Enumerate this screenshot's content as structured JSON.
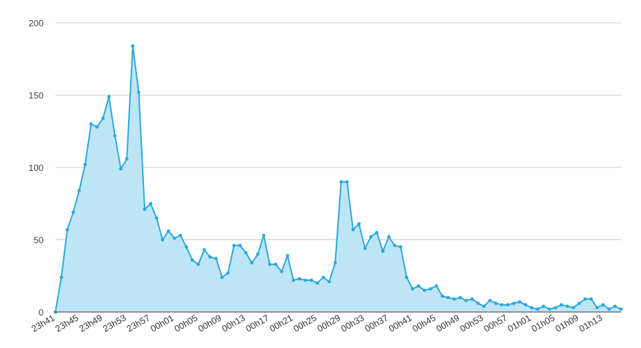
{
  "colors": {
    "line": "#29a8dc",
    "fill": "#bde5f5",
    "grid": "#cccccc",
    "axis": "#333333"
  },
  "chart_data": {
    "type": "area",
    "title": "",
    "xlabel": "",
    "ylabel": "",
    "ylim": [
      0,
      200
    ],
    "y_ticks": [
      0,
      50,
      100,
      150,
      200
    ],
    "grid": true,
    "legend": "none",
    "x_tick_labels": [
      "23h41",
      "23h45",
      "23h49",
      "23h53",
      "23h57",
      "00h01",
      "00h05",
      "00h09",
      "00h13",
      "00h17",
      "00h21",
      "00h25",
      "00h29",
      "00h33",
      "00h37",
      "00h41",
      "00h45",
      "00h49",
      "00h53",
      "00h57",
      "01h01",
      "01h05",
      "01h09",
      "01h13"
    ],
    "x_tick_every": 4,
    "series": [
      {
        "values": [
          0,
          24,
          57,
          69,
          84,
          102,
          130,
          128,
          134,
          149,
          122,
          99,
          106,
          184,
          152,
          71,
          75,
          65,
          50,
          56,
          51,
          53,
          45,
          36,
          33,
          43,
          38,
          37,
          24,
          27,
          46,
          46,
          41,
          34,
          40,
          53,
          33,
          33,
          28,
          39,
          22,
          23,
          22,
          22,
          20,
          24,
          21,
          34,
          90,
          90,
          57,
          61,
          44,
          52,
          55,
          42,
          52,
          46,
          45,
          24,
          16,
          18,
          15,
          16,
          18,
          11,
          10,
          9,
          10,
          8,
          9,
          6,
          4,
          8,
          6,
          5,
          5,
          6,
          7,
          5,
          3,
          2,
          4,
          2,
          3,
          5,
          4,
          3,
          6,
          9,
          9,
          3,
          5,
          2,
          4,
          2
        ]
      }
    ]
  }
}
